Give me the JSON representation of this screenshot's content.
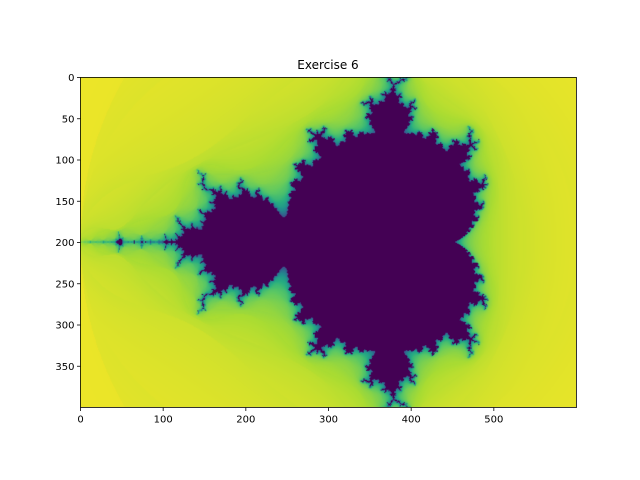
{
  "chart_data": {
    "type": "heatmap",
    "title": "Exercise 6",
    "xlabel": "",
    "ylabel": "",
    "image_width": 600,
    "image_height": 400,
    "fractal": {
      "re_min": -2.0,
      "re_max": 1.0,
      "im_min": -1.0,
      "im_max": 1.0,
      "max_iter": 20
    },
    "colormap": "viridis",
    "xlim": [
      0,
      600
    ],
    "ylim": [
      400,
      0
    ],
    "x_ticks": [
      0,
      100,
      200,
      300,
      400,
      500
    ],
    "y_ticks": [
      0,
      50,
      100,
      150,
      200,
      250,
      300,
      350
    ],
    "x_tick_labels": [
      "0",
      "100",
      "200",
      "300",
      "400",
      "500"
    ],
    "y_tick_labels": [
      "0",
      "50",
      "100",
      "150",
      "200",
      "250",
      "300",
      "350"
    ],
    "grid": false,
    "legend": "none"
  }
}
